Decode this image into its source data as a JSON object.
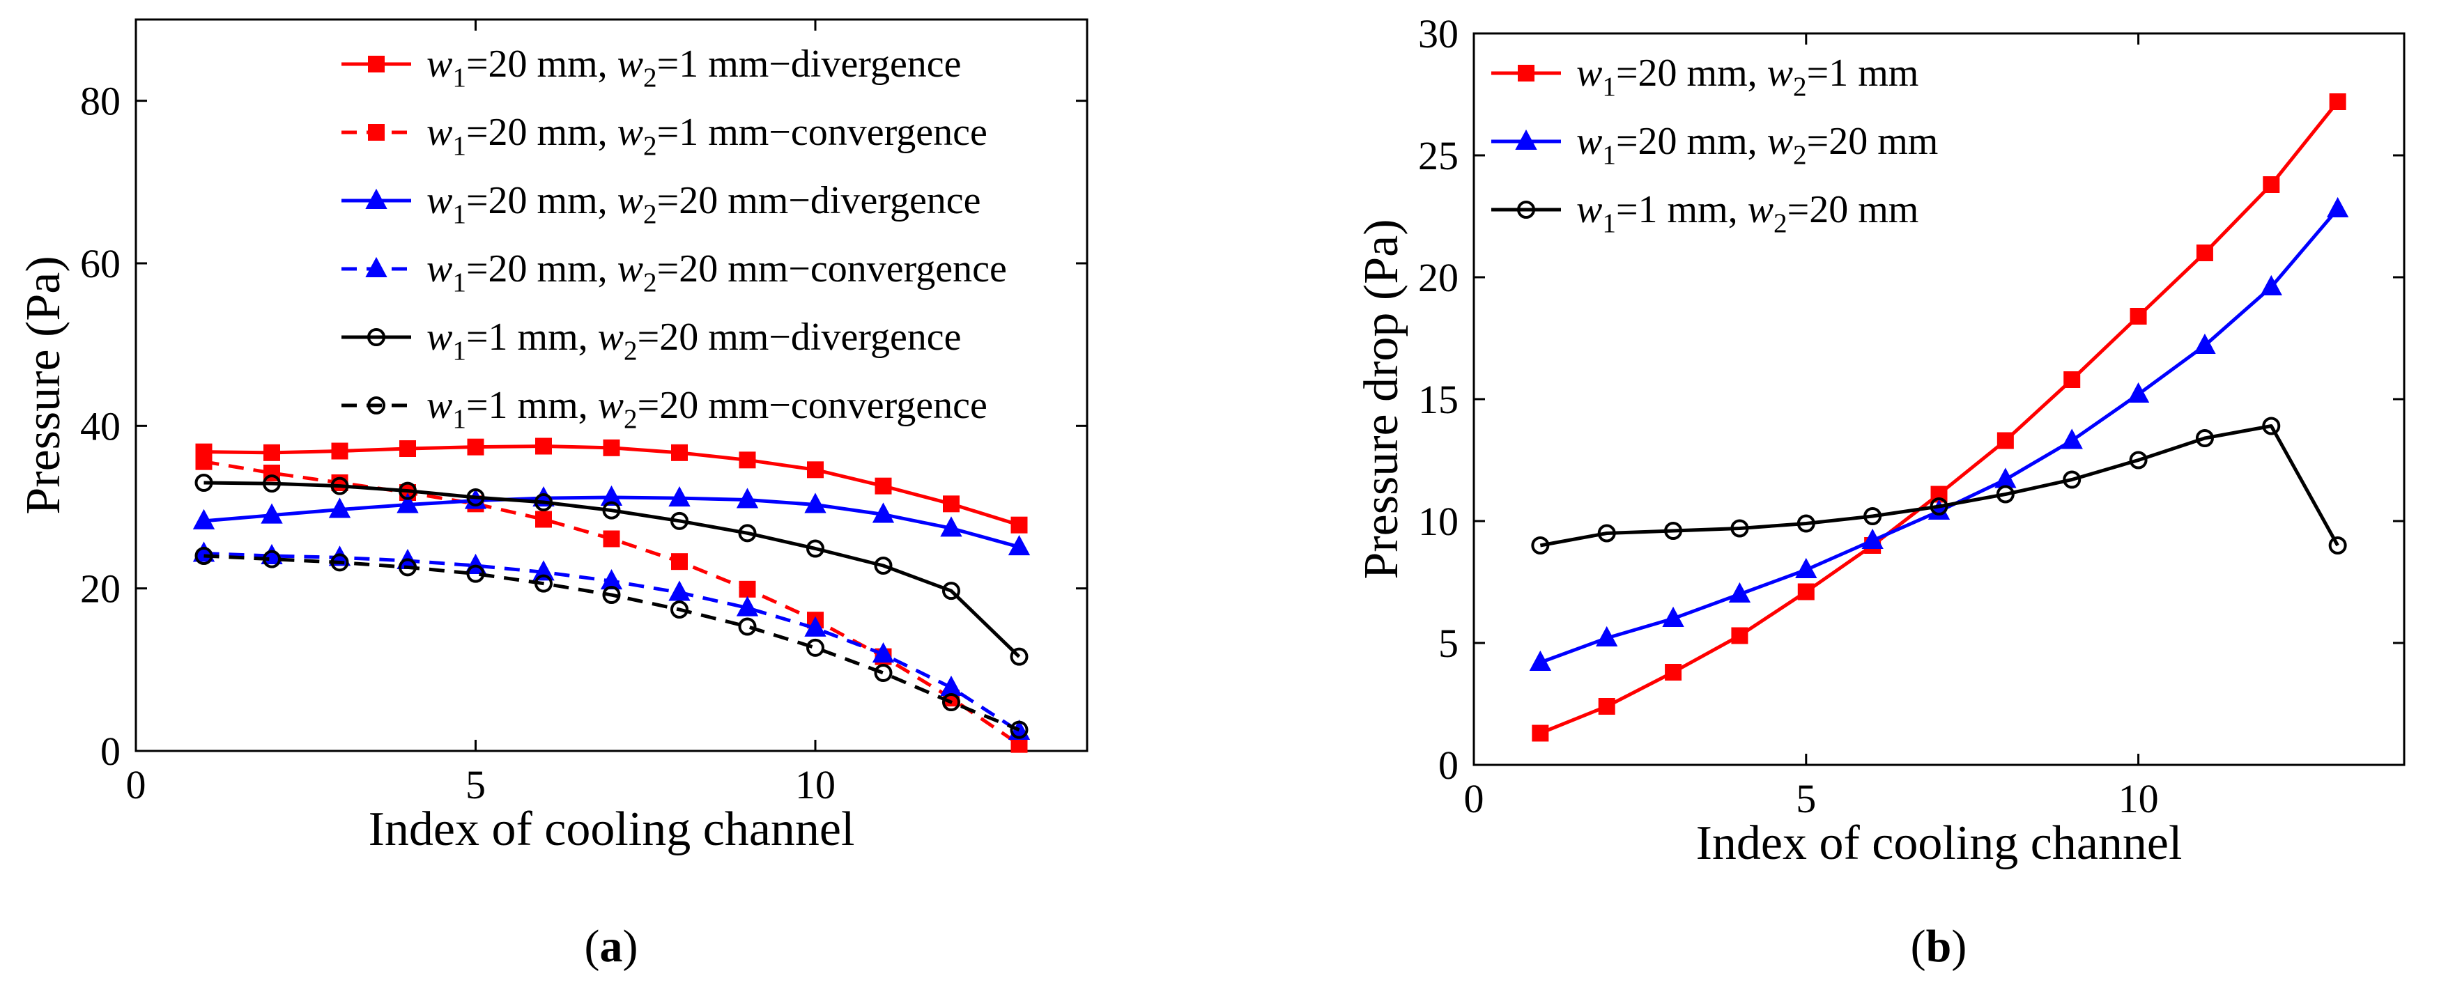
{
  "chart_data": [
    {
      "type": "line",
      "panel_label": "(a)",
      "panel_letter": "a",
      "xlabel": "Index of cooling channel",
      "ylabel": "Pressure (Pa)",
      "xlim": [
        0,
        14
      ],
      "ylim": [
        0,
        90
      ],
      "xticks": [
        0,
        5,
        10
      ],
      "yticks": [
        0,
        20,
        40,
        60,
        80
      ],
      "grid": false,
      "legend_position": "top-right",
      "x": [
        1,
        2,
        3,
        4,
        5,
        6,
        7,
        8,
        9,
        10,
        11,
        12,
        13
      ],
      "series": [
        {
          "name": "w1=20 mm, w2=1 mm−divergence",
          "w1": "20 mm",
          "w2": "1 mm",
          "suffix": "−divergence",
          "color": "#ff0000",
          "dash": "solid",
          "marker": "square",
          "values": [
            36.8,
            36.7,
            36.9,
            37.2,
            37.4,
            37.5,
            37.3,
            36.7,
            35.8,
            34.6,
            32.6,
            30.4,
            27.8
          ]
        },
        {
          "name": "w1=20 mm, w2=1 mm−convergence",
          "w1": "20 mm",
          "w2": "1 mm",
          "suffix": "−convergence",
          "color": "#ff0000",
          "dash": "dashed",
          "marker": "square",
          "values": [
            35.6,
            34.2,
            33.0,
            31.8,
            30.4,
            28.5,
            26.1,
            23.3,
            19.9,
            16.1,
            11.6,
            6.5,
            0.8
          ]
        },
        {
          "name": "w1=20 mm, w2=20 mm−divergence",
          "w1": "20 mm",
          "w2": "20 mm",
          "suffix": "−divergence",
          "color": "#0000ff",
          "dash": "solid",
          "marker": "triangle",
          "values": [
            28.3,
            29.0,
            29.7,
            30.3,
            30.8,
            31.1,
            31.2,
            31.1,
            30.9,
            30.3,
            29.1,
            27.4,
            25.1
          ]
        },
        {
          "name": "w1=20 mm, w2=20 mm−convergence",
          "w1": "20 mm",
          "w2": "20 mm",
          "suffix": "−convergence",
          "color": "#0000ff",
          "dash": "dashed",
          "marker": "triangle",
          "values": [
            24.3,
            24.0,
            23.8,
            23.4,
            22.8,
            22.0,
            20.9,
            19.5,
            17.6,
            15.1,
            11.9,
            7.8,
            2.4
          ]
        },
        {
          "name": "w1=1 mm, w2=20 mm−divergence",
          "w1": "1 mm",
          "w2": "20 mm",
          "suffix": "−divergence",
          "color": "#000000",
          "dash": "solid",
          "marker": "circle",
          "values": [
            33.0,
            32.9,
            32.6,
            32.0,
            31.2,
            30.6,
            29.6,
            28.3,
            26.8,
            24.9,
            22.8,
            19.7,
            11.6
          ]
        },
        {
          "name": "w1=1 mm, w2=20 mm−convergence",
          "w1": "1 mm",
          "w2": "20 mm",
          "suffix": "−convergence",
          "color": "#000000",
          "dash": "dashed",
          "marker": "circle",
          "values": [
            24.0,
            23.6,
            23.2,
            22.6,
            21.8,
            20.6,
            19.2,
            17.4,
            15.3,
            12.7,
            9.6,
            6.0,
            2.6
          ]
        }
      ]
    },
    {
      "type": "line",
      "panel_label": "(b)",
      "panel_letter": "b",
      "xlabel": "Index of cooling channel",
      "ylabel": "Pressure drop (Pa)",
      "xlim": [
        0,
        14
      ],
      "ylim": [
        0,
        30
      ],
      "xticks": [
        0,
        5,
        10
      ],
      "yticks": [
        0,
        5,
        10,
        15,
        20,
        25,
        30
      ],
      "grid": false,
      "legend_position": "top-left",
      "x": [
        1,
        2,
        3,
        4,
        5,
        6,
        7,
        8,
        9,
        10,
        11,
        12,
        13
      ],
      "series": [
        {
          "name": "w1=20 mm, w2=1 mm",
          "w1": "20 mm",
          "w2": "1 mm",
          "suffix": "",
          "color": "#ff0000",
          "dash": "solid",
          "marker": "square",
          "values": [
            1.3,
            2.4,
            3.8,
            5.3,
            7.1,
            9.0,
            11.1,
            13.3,
            15.8,
            18.4,
            21.0,
            23.8,
            27.2
          ]
        },
        {
          "name": "w1=20 mm, w2=20 mm",
          "w1": "20 mm",
          "w2": "20 mm",
          "suffix": "",
          "color": "#0000ff",
          "dash": "solid",
          "marker": "triangle",
          "values": [
            4.2,
            5.2,
            6.0,
            7.0,
            8.0,
            9.2,
            10.4,
            11.7,
            13.3,
            15.2,
            17.2,
            19.6,
            22.8
          ]
        },
        {
          "name": "w1=1 mm, w2=20 mm",
          "w1": "1 mm",
          "w2": "20 mm",
          "suffix": "",
          "color": "#000000",
          "dash": "solid",
          "marker": "circle",
          "values": [
            9.0,
            9.5,
            9.6,
            9.7,
            9.9,
            10.2,
            10.6,
            11.1,
            11.7,
            12.5,
            13.4,
            13.9,
            9.0
          ]
        }
      ]
    }
  ]
}
